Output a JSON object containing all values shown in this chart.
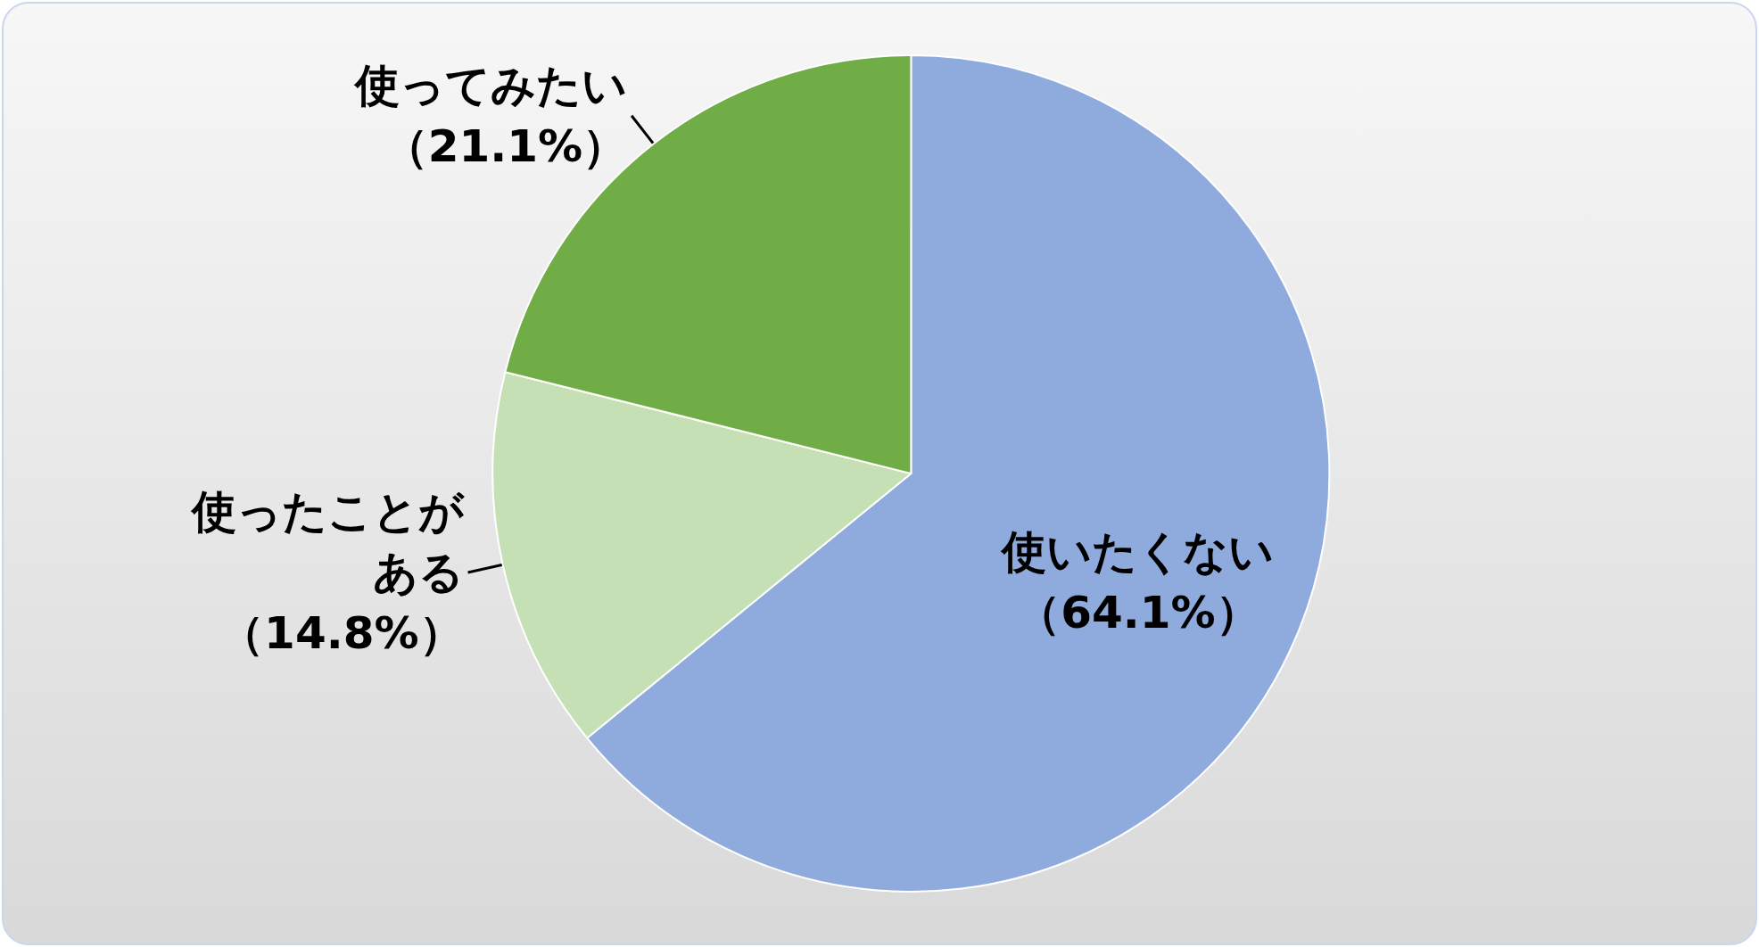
{
  "chart_data": {
    "type": "pie",
    "categories": [
      "使いたくない",
      "使ったことがある",
      "使ってみたい"
    ],
    "values": [
      64.1,
      14.8,
      21.1
    ],
    "value_labels": [
      "（64.1%）",
      "（14.8%）",
      "（21.1%）"
    ],
    "colors": [
      "#8faadc",
      "#c5e0b4",
      "#70ad47"
    ],
    "legend": false
  }
}
